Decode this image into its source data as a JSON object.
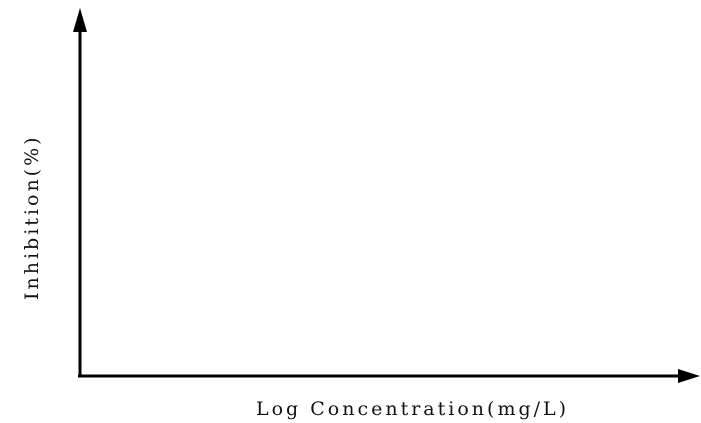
{
  "chart_data": {
    "type": "line",
    "title": "",
    "xlabel": "Log Concentration(mg/L)",
    "ylabel": "Inhibition(%)",
    "series": [],
    "grid": false,
    "ticks": false,
    "legend": "none",
    "axis_color": "#000000"
  }
}
